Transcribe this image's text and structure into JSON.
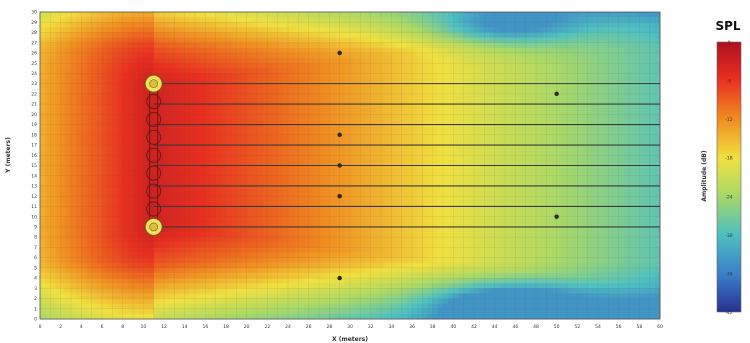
{
  "chart_data": {
    "type": "heatmap",
    "title": "",
    "xlabel": "X (meters)",
    "ylabel": "Y (meters)",
    "xlim": [
      0,
      60
    ],
    "ylim": [
      0,
      30
    ],
    "x_ticks": [
      "0",
      "2",
      "4",
      "6",
      "8",
      "10",
      "12",
      "14",
      "16",
      "18",
      "20",
      "22",
      "24",
      "26",
      "28",
      "30",
      "32",
      "34",
      "36",
      "38",
      "40",
      "42",
      "44",
      "46",
      "48",
      "50",
      "52",
      "54",
      "56",
      "58",
      "60"
    ],
    "y_ticks": [
      "0",
      "1",
      "2",
      "3",
      "4",
      "5",
      "6",
      "7",
      "8",
      "9",
      "10",
      "11",
      "12",
      "13",
      "14",
      "15",
      "16",
      "17",
      "18",
      "19",
      "20",
      "21",
      "22",
      "23",
      "24",
      "25",
      "26",
      "27",
      "28",
      "29",
      "30"
    ],
    "grid": true,
    "colorbar": {
      "title": "SPL",
      "label": "Amplitude (dB)",
      "ticks": [
        "0",
        "-6",
        "-12",
        "-18",
        "-24",
        "-30",
        "-36",
        "-42"
      ],
      "range": [
        -42,
        0
      ],
      "colors": [
        "#b01020",
        "#e83020",
        "#f08a20",
        "#f0e040",
        "#a8d868",
        "#50c0c0",
        "#3a80c8",
        "#283090"
      ]
    },
    "source_array": {
      "x": 11,
      "y_range": [
        9,
        23
      ],
      "element_count": 9,
      "element_y": [
        9,
        10.75,
        12.5,
        14.25,
        16,
        17.75,
        19.5,
        21.25,
        23
      ]
    },
    "measurement_lines_y": [
      9,
      11,
      13,
      15,
      17,
      19,
      21,
      23
    ],
    "measurement_points": [
      {
        "x": 29,
        "y": 4
      },
      {
        "x": 29,
        "y": 12
      },
      {
        "x": 29,
        "y": 15
      },
      {
        "x": 29,
        "y": 18
      },
      {
        "x": 29,
        "y": 26
      },
      {
        "x": 50,
        "y": 10
      },
      {
        "x": 50,
        "y": 22
      }
    ],
    "field_model": {
      "peak_db": 0,
      "near_field_dip_db": -34,
      "far_field_cold_spots": [
        {
          "x": 45,
          "y": 1.5,
          "db": -32
        },
        {
          "x": 45,
          "y": 28.5,
          "db": -30
        }
      ]
    }
  }
}
